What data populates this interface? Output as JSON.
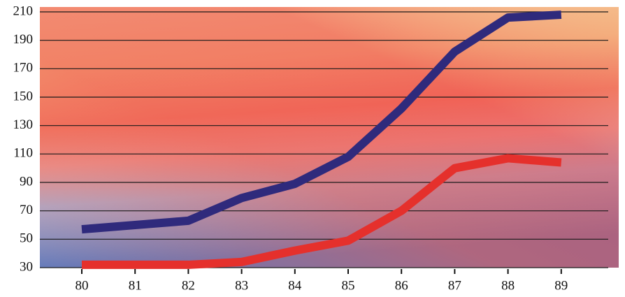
{
  "chart_data": {
    "type": "line",
    "categories": [
      "80",
      "81",
      "82",
      "83",
      "84",
      "85",
      "86",
      "87",
      "88",
      "89"
    ],
    "series": [
      {
        "color": "#2f2a7c",
        "values": [
          57,
          60,
          63,
          79,
          89,
          108,
          142,
          182,
          206,
          208
        ]
      },
      {
        "color": "#e5302c",
        "values": [
          32,
          32,
          32,
          34,
          42,
          49,
          70,
          100,
          107,
          104
        ]
      }
    ],
    "ylim": [
      30,
      210
    ],
    "yticks": [
      30,
      50,
      70,
      90,
      110,
      130,
      150,
      170,
      190,
      210
    ],
    "grid": true
  }
}
